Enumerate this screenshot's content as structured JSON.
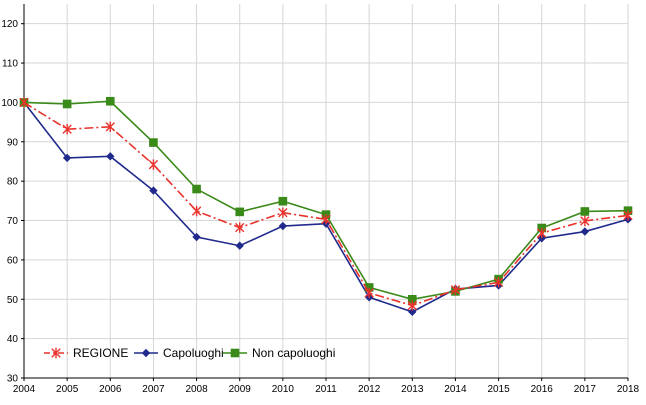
{
  "chart_data": {
    "type": "line",
    "title": "",
    "xlabel": "",
    "ylabel": "",
    "x": [
      "2004",
      "2005",
      "2006",
      "2007",
      "2008",
      "2009",
      "2010",
      "2011",
      "2012",
      "2013",
      "2014",
      "2015",
      "2016",
      "2017",
      "2018"
    ],
    "ylim": [
      30,
      125
    ],
    "yticks": [
      30,
      40,
      50,
      60,
      70,
      80,
      90,
      100,
      110,
      120
    ],
    "grid": true,
    "legend_position": "bottom-left",
    "series": [
      {
        "name": "REGIONE",
        "color": "#e8322b",
        "marker": "star",
        "line_style": "dash-dot",
        "values": [
          100,
          93.2,
          93.8,
          84.2,
          72.4,
          68.2,
          72.0,
          70.3,
          51.6,
          48.4,
          52.4,
          54.3,
          66.8,
          69.9,
          71.3
        ]
      },
      {
        "name": "Capoluoghi",
        "color": "#1f2a8c",
        "marker": "diamond",
        "line_style": "solid",
        "values": [
          100,
          85.9,
          86.3,
          77.6,
          65.8,
          63.6,
          68.6,
          69.2,
          50.5,
          46.8,
          52.6,
          53.5,
          65.5,
          67.2,
          70.3
        ]
      },
      {
        "name": "Non capoluoghi",
        "color": "#3a8a1a",
        "marker": "square",
        "line_style": "solid",
        "values": [
          100,
          99.6,
          100.3,
          89.8,
          78.0,
          72.2,
          74.9,
          71.5,
          53.0,
          50.0,
          52.0,
          55.1,
          68.1,
          72.3,
          72.5
        ]
      }
    ]
  }
}
